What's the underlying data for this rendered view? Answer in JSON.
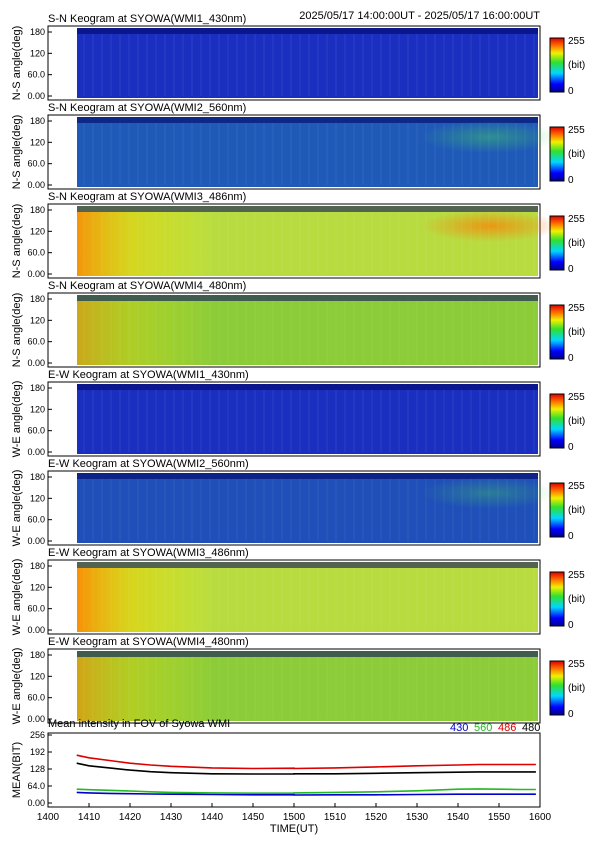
{
  "time_range": "2025/05/17 14:00:00UT - 2025/05/17 16:00:00UT",
  "colorbar": {
    "max_label": "255",
    "unit_label": "(bit)",
    "min_label": "0"
  },
  "panels": [
    {
      "title": "S-N Keogram at SYOWA(WMI1_430nm)",
      "ylabel": "N-S angle(deg)",
      "base_color": "#1a2fc0",
      "warm_level": 0.0,
      "aurora_level": 0.0
    },
    {
      "title": "S-N Keogram at SYOWA(WMI2_560nm)",
      "ylabel": "N-S angle(deg)",
      "base_color": "#1f5ab8",
      "warm_level": 0.0,
      "aurora_level": 0.45
    },
    {
      "title": "S-N Keogram at SYOWA(WMI3_486nm)",
      "ylabel": "N-S angle(deg)",
      "base_color": "#b8dc40",
      "warm_level": 0.85,
      "aurora_level": 0.7
    },
    {
      "title": "S-N Keogram at SYOWA(WMI4_480nm)",
      "ylabel": "N-S angle(deg)",
      "base_color": "#8ccc38",
      "warm_level": 0.55,
      "aurora_level": 0.0
    },
    {
      "title": "E-W Keogram at SYOWA(WMI1_430nm)",
      "ylabel": "W-E angle(deg)",
      "base_color": "#1a2fc0",
      "warm_level": 0.0,
      "aurora_level": 0.0
    },
    {
      "title": "E-W Keogram at SYOWA(WMI2_560nm)",
      "ylabel": "W-E angle(deg)",
      "base_color": "#1f4fb8",
      "warm_level": 0.0,
      "aurora_level": 0.35
    },
    {
      "title": "E-W Keogram at SYOWA(WMI3_486nm)",
      "ylabel": "W-E angle(deg)",
      "base_color": "#b8dc40",
      "warm_level": 0.9,
      "aurora_level": 0.0
    },
    {
      "title": "E-W Keogram at SYOWA(WMI4_480nm)",
      "ylabel": "W-E angle(deg)",
      "base_color": "#8ccc38",
      "warm_level": 0.6,
      "aurora_level": 0.0
    }
  ],
  "angle_ticks": [
    "0.00",
    "60.0",
    "120",
    "180"
  ],
  "chart_data": {
    "type": "line",
    "title": "Mean intensity in FOV of Syowa WMI",
    "xlabel": "TIME(UT)",
    "ylabel": "MEAN(BIT)",
    "x": [
      1407,
      1410,
      1415,
      1420,
      1425,
      1430,
      1440,
      1450,
      1460,
      1500,
      1510,
      1520,
      1530,
      1540,
      1545,
      1550,
      1555,
      1559
    ],
    "x_ticks": [
      "1400",
      "1410",
      "1420",
      "1430",
      "1440",
      "1450",
      "1500",
      "1510",
      "1520",
      "1530",
      "1540",
      "1550",
      "1600"
    ],
    "y_ticks": [
      "0.00",
      "64.0",
      "128",
      "192",
      "256"
    ],
    "ylim": [
      0,
      256
    ],
    "xlim": [
      1400,
      1600
    ],
    "series": [
      {
        "name": "430",
        "color": "#0000cc",
        "values": [
          40,
          38,
          36,
          35,
          34,
          33,
          32,
          31,
          31,
          30,
          31,
          31,
          32,
          33,
          33,
          33,
          33,
          33
        ]
      },
      {
        "name": "560",
        "color": "#22bb22",
        "values": [
          52,
          50,
          48,
          45,
          42,
          40,
          38,
          37,
          37,
          38,
          40,
          42,
          46,
          52,
          53,
          52,
          51,
          51
        ]
      },
      {
        "name": "486",
        "color": "#dd0000",
        "values": [
          180,
          170,
          160,
          150,
          143,
          138,
          132,
          130,
          131,
          130,
          132,
          136,
          140,
          143,
          145,
          145,
          145,
          145
        ]
      },
      {
        "name": "480",
        "color": "#000000",
        "values": [
          150,
          140,
          132,
          124,
          118,
          114,
          110,
          109,
          109,
          110,
          110,
          112,
          114,
          116,
          117,
          117,
          117,
          117
        ]
      }
    ]
  }
}
